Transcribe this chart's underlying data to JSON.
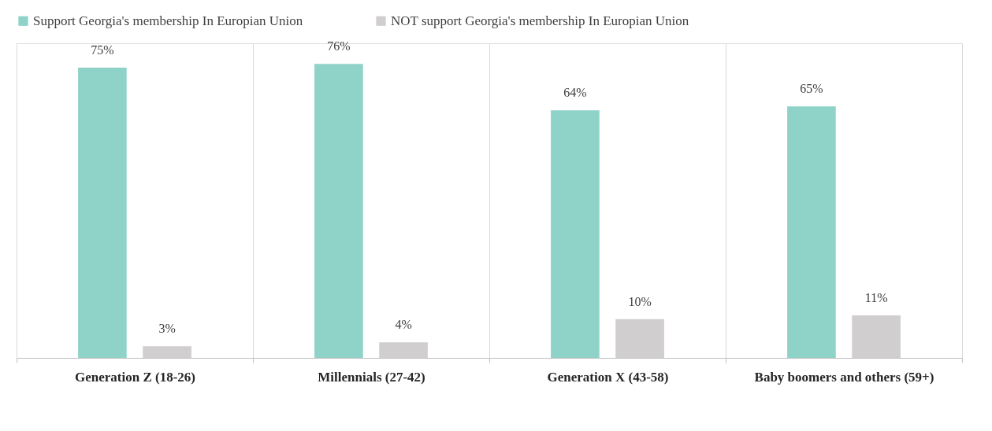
{
  "chart_data": {
    "type": "bar",
    "categories": [
      "Generation Z (18-26)",
      "Millennials (27-42)",
      "Generation X  (43-58)",
      "Baby boomers and others (59+)"
    ],
    "series": [
      {
        "name": "Support Georgia's membership In Europian Union",
        "color": "#8fd3c8",
        "values": [
          75,
          76,
          64,
          65
        ],
        "value_labels": [
          "75%",
          "76%",
          "64%",
          "65%"
        ]
      },
      {
        "name": "NOT support Georgia's membership In Europian Union",
        "color": "#d0cece",
        "values": [
          3,
          4,
          10,
          11
        ],
        "value_labels": [
          "3%",
          "4%",
          "10%",
          "11%"
        ]
      }
    ],
    "legend": "top",
    "grid": "x",
    "tick_labels": "x"
  }
}
